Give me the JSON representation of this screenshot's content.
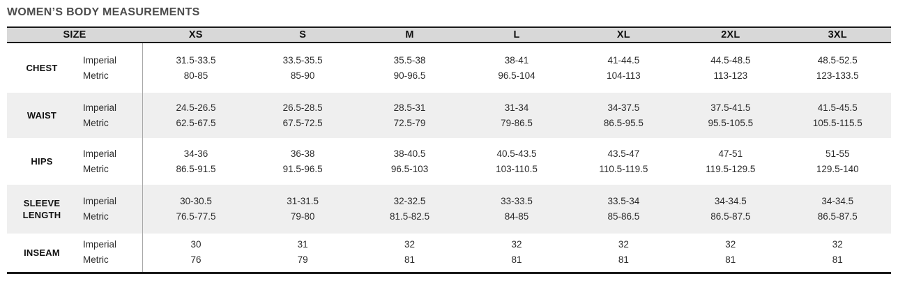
{
  "title": "WOMEN’S BODY MEASUREMENTS",
  "table": {
    "header": {
      "size_label": "SIZE",
      "sizes": [
        "XS",
        "S",
        "M",
        "L",
        "XL",
        "2XL",
        "3XL"
      ]
    },
    "unit_labels": {
      "imperial": "Imperial",
      "metric": "Metric"
    },
    "rows": [
      {
        "label": "CHEST",
        "imperial": [
          "31.5-33.5",
          "33.5-35.5",
          "35.5-38",
          "38-41",
          "41-44.5",
          "44.5-48.5",
          "48.5-52.5"
        ],
        "metric": [
          "80-85",
          "85-90",
          "90-96.5",
          "96.5-104",
          "104-113",
          "113-123",
          "123-133.5"
        ]
      },
      {
        "label": "WAIST",
        "imperial": [
          "24.5-26.5",
          "26.5-28.5",
          "28.5-31",
          "31-34",
          "34-37.5",
          "37.5-41.5",
          "41.5-45.5"
        ],
        "metric": [
          "62.5-67.5",
          "67.5-72.5",
          "72.5-79",
          "79-86.5",
          "86.5-95.5",
          "95.5-105.5",
          "105.5-115.5"
        ]
      },
      {
        "label": "HIPS",
        "imperial": [
          "34-36",
          "36-38",
          "38-40.5",
          "40.5-43.5",
          "43.5-47",
          "47-51",
          "51-55"
        ],
        "metric": [
          "86.5-91.5",
          "91.5-96.5",
          "96.5-103",
          "103-110.5",
          "110.5-119.5",
          "119.5-129.5",
          "129.5-140"
        ]
      },
      {
        "label": "SLEEVE LENGTH",
        "imperial": [
          "30-30.5",
          "31-31.5",
          "32-32.5",
          "33-33.5",
          "33.5-34",
          "34-34.5",
          "34-34.5"
        ],
        "metric": [
          "76.5-77.5",
          "79-80",
          "81.5-82.5",
          "84-85",
          "85-86.5",
          "86.5-87.5",
          "86.5-87.5"
        ]
      },
      {
        "label": "INSEAM",
        "imperial": [
          "30",
          "31",
          "32",
          "32",
          "32",
          "32",
          "32"
        ],
        "metric": [
          "76",
          "79",
          "81",
          "81",
          "81",
          "81",
          "81"
        ]
      }
    ]
  },
  "colors": {
    "header_bg": "#d8d8d8",
    "stripe_bg": "#efefef",
    "rule_dark": "#1a1a1a",
    "divider": "#a8a8a8",
    "title_color": "#4d4d4d",
    "text": "#2b2b2b"
  }
}
